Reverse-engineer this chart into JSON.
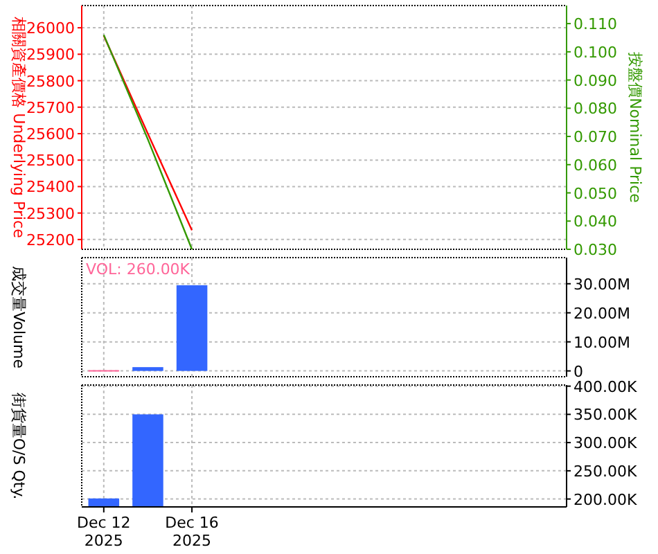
{
  "chart_data": [
    {
      "type": "line",
      "ylabel": "相關資產價格 Underlying Price",
      "y2label": "按盤價Nominal Price",
      "categories": [
        null,
        null,
        null,
        null,
        null,
        null,
        null,
        null,
        null,
        null,
        null
      ],
      "series": [
        {
          "color": "#ff0000",
          "values": [
            25970,
            25600,
            25235,
            null,
            null,
            null,
            null,
            null,
            null,
            null,
            null
          ]
        },
        {
          "color": "#339900",
          "axis": "y2",
          "values": [
            0.106,
            0.069,
            0.03,
            null,
            null,
            null,
            null,
            null,
            null,
            null,
            null
          ]
        }
      ],
      "ylim": [
        25163,
        26084
      ],
      "yticks": [
        25200,
        25300,
        25400,
        25500,
        25600,
        25700,
        25800,
        25900,
        26000
      ],
      "y2lim": [
        0.03,
        0.1164
      ],
      "y2ticks": [
        {
          "value": 0.03,
          "label": "0.030"
        },
        {
          "value": 0.04,
          "label": "0.040"
        },
        {
          "value": 0.05,
          "label": "0.050"
        },
        {
          "value": 0.06,
          "label": "0.060"
        },
        {
          "value": 0.07,
          "label": "0.070"
        },
        {
          "value": 0.08,
          "label": "0.080"
        },
        {
          "value": 0.09,
          "label": "0.090"
        },
        {
          "value": 0.1,
          "label": "0.100"
        },
        {
          "value": 0.11,
          "label": "0.110"
        }
      ],
      "grid": true,
      "tick_labels": "y"
    },
    {
      "type": "bar",
      "ylabel": "成交量Volume",
      "annotations": [
        "VOL: 260.00K"
      ],
      "categories": [
        null,
        null,
        null,
        null,
        null,
        null,
        null,
        null,
        null,
        null,
        null
      ],
      "values": [
        260000,
        1300000,
        29500000,
        null,
        null,
        null,
        null,
        null,
        null,
        null,
        null
      ],
      "colors": [
        "#ff6699",
        "#3366ff",
        "#3366ff",
        null,
        null,
        null,
        null,
        null,
        null,
        null,
        null
      ],
      "ylim": [
        -2000000,
        39000000
      ],
      "yticks": [
        {
          "value": 0,
          "label": "0"
        },
        {
          "value": 10000000,
          "label": "10.00M"
        },
        {
          "value": 20000000,
          "label": "20.00M"
        },
        {
          "value": 30000000,
          "label": "30.00M"
        }
      ],
      "grid": true,
      "tick_labels": "y"
    },
    {
      "type": "bar",
      "ylabel": "街貨量O/S Qty.",
      "categories": [
        "Dec 12 2025",
        null,
        "Dec 16 2025",
        null,
        null,
        null,
        null,
        null,
        null,
        null,
        null
      ],
      "values": [
        201000,
        350000,
        null,
        null,
        null,
        null,
        null,
        null,
        null,
        null,
        null
      ],
      "colors": [
        "#3366ff",
        "#3366ff",
        null,
        null,
        null,
        null,
        null,
        null,
        null,
        null,
        null
      ],
      "ylim": [
        186000,
        402000
      ],
      "yticks": [
        {
          "value": 200000,
          "label": "200.00K"
        },
        {
          "value": 250000,
          "label": "250.00K"
        },
        {
          "value": 300000,
          "label": "300.00K"
        },
        {
          "value": 350000,
          "label": "350.00K"
        },
        {
          "value": 400000,
          "label": "400.00K"
        }
      ],
      "grid": true
    }
  ]
}
